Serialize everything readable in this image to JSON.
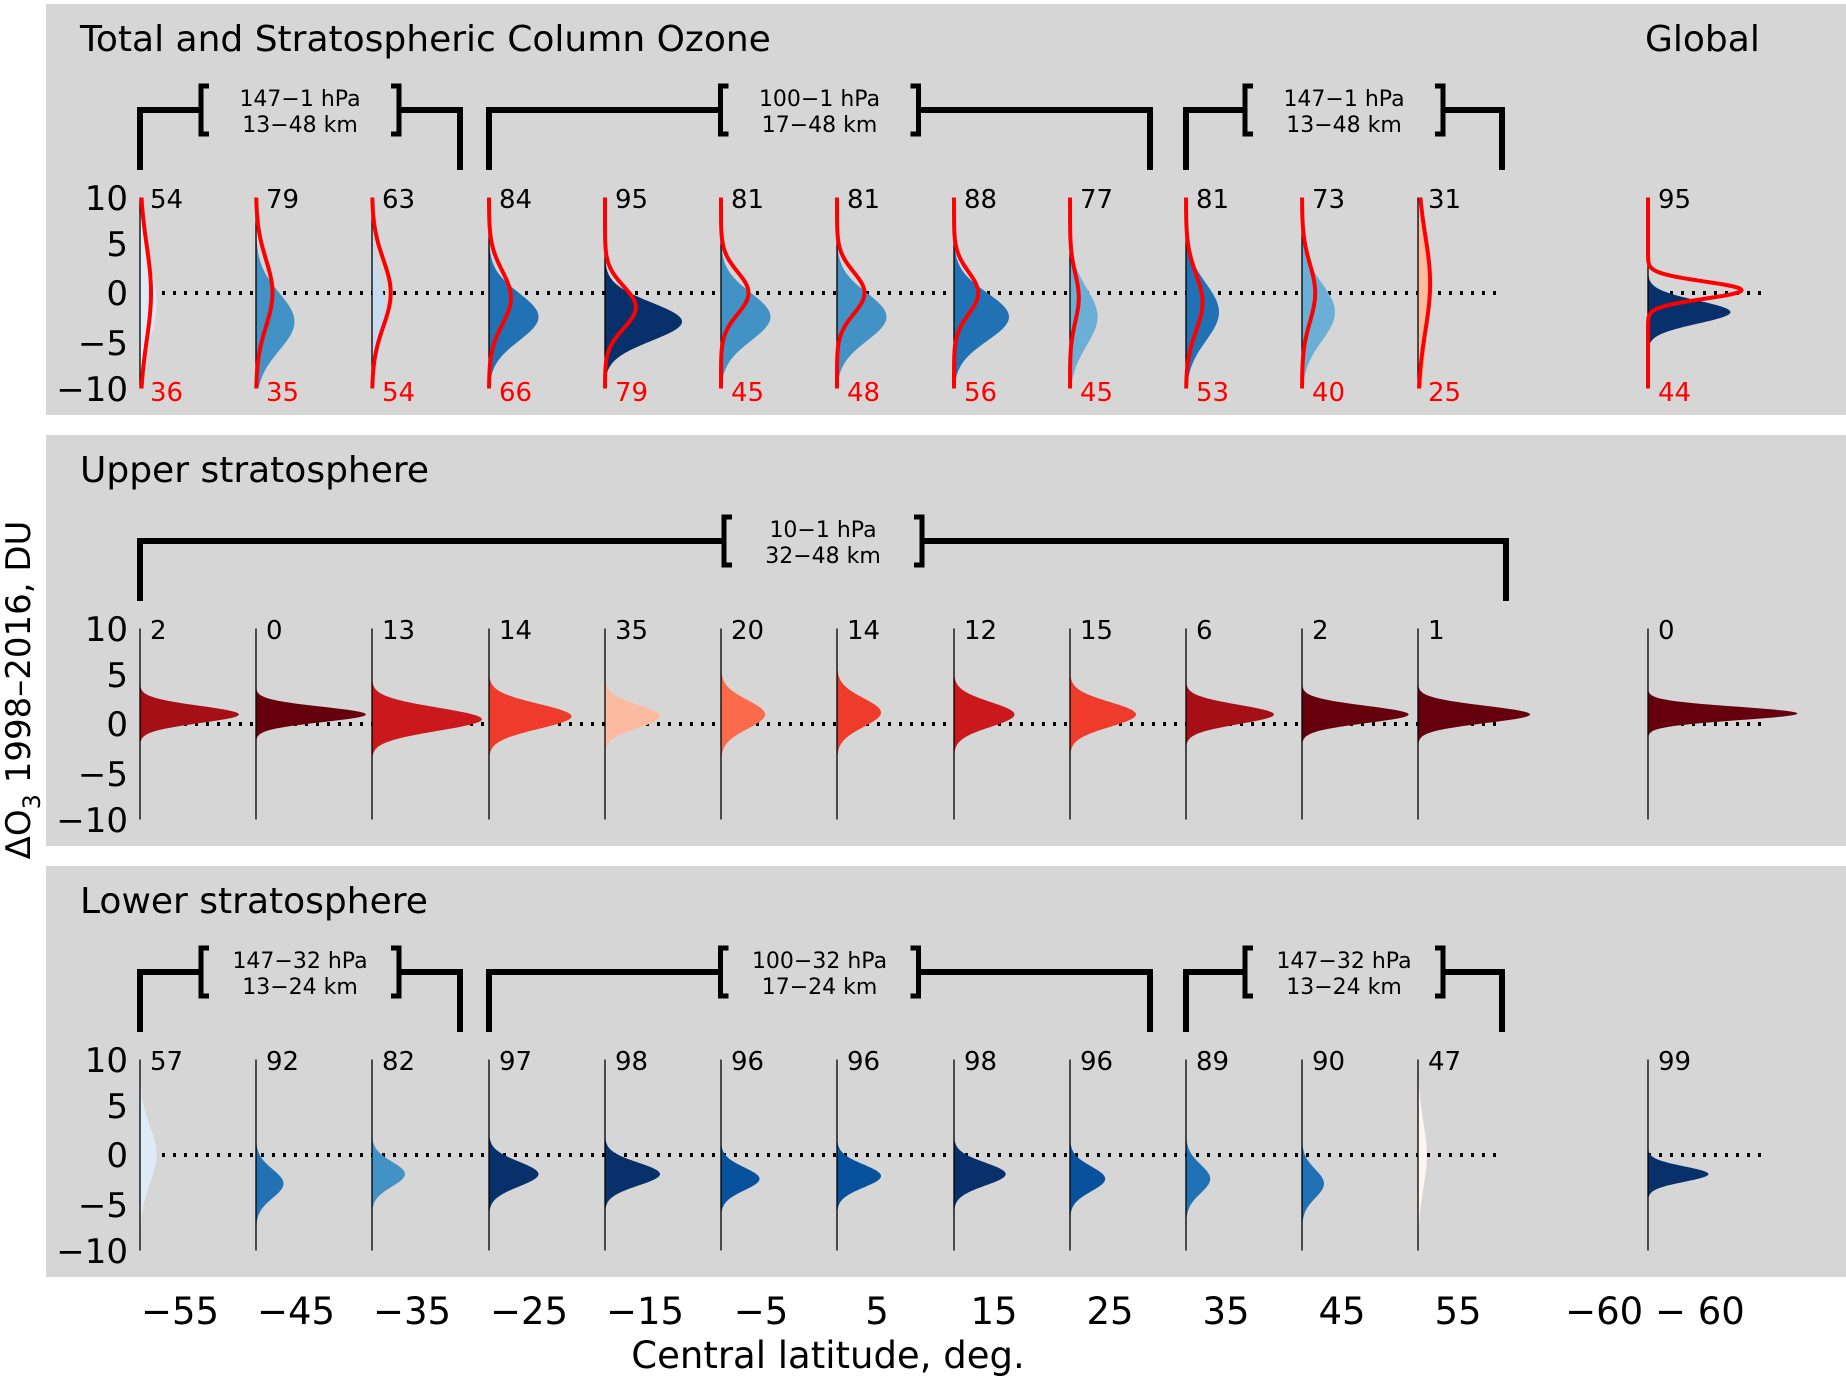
{
  "figure": {
    "ylabel_main": "ΔO",
    "ylabel_sub": "3",
    "ylabel_rest": " 1998–2016, DU",
    "xlabel": "Central latitude, deg.",
    "y_ticks": [
      "10",
      "5",
      "0",
      "−5",
      "−10"
    ],
    "x_tick_labels": [
      "−55",
      "−45",
      "−35",
      "−25",
      "−15",
      "−5",
      "5",
      "15",
      "25",
      "35",
      "45",
      "55"
    ],
    "global_tick_label": "−60 − 60",
    "colors": {
      "panel_bg": "#d6d6d6",
      "red_curve": "#ff0000",
      "red_numbers": "#ff0000",
      "blues": {
        "lightest": "#deebf7",
        "light": "#c6dbef",
        "mid_light": "#9ecae1",
        "mid": "#4292c6",
        "mid_dark": "#2171b5",
        "dark": "#08519c",
        "darkest": "#08306b"
      },
      "reds": {
        "palest": "#fff5f0",
        "pale": "#fcbba1",
        "light": "#fc9272",
        "mid": "#ef3b2c",
        "mid_dark": "#cb181d",
        "dark": "#a50f15",
        "darkest": "#67000d"
      }
    }
  },
  "chart_data": [
    {
      "type": "area",
      "title": "Total and Stratospheric Column Ozone",
      "global_label": "Global",
      "ylim": [
        -10,
        10
      ],
      "brackets": [
        {
          "line1": "147−1 hPa",
          "line2": "13−48 km"
        },
        {
          "line1": "100−1 hPa",
          "line2": "17−48 km"
        },
        {
          "line1": "147−1 hPa",
          "line2": "13−48 km"
        }
      ],
      "categories": [
        "−55",
        "−45",
        "−35",
        "−25",
        "−15",
        "−5",
        "5",
        "15",
        "25",
        "35",
        "45",
        "55",
        "−60 − 60"
      ],
      "top_numbers": [
        "54",
        "79",
        "63",
        "84",
        "95",
        "81",
        "81",
        "88",
        "77",
        "81",
        "73",
        "31",
        "95"
      ],
      "bottom_numbers": [
        "36",
        "35",
        "54",
        "66",
        "79",
        "45",
        "48",
        "56",
        "45",
        "53",
        "40",
        "25",
        "44"
      ],
      "strat_distributions": [
        {
          "mean": -1.0,
          "sd": 4.0,
          "peak": 0.15,
          "color": "#deebf7"
        },
        {
          "mean": -3.0,
          "sd": 3.0,
          "peak": 0.35,
          "color": "#4292c6"
        },
        {
          "mean": -2.0,
          "sd": 3.5,
          "peak": 0.12,
          "color": "#c6dbef"
        },
        {
          "mean": -2.5,
          "sd": 2.5,
          "peak": 0.45,
          "color": "#2171b5"
        },
        {
          "mean": -3.0,
          "sd": 2.0,
          "peak": 0.7,
          "color": "#08306b"
        },
        {
          "mean": -2.5,
          "sd": 2.5,
          "peak": 0.45,
          "color": "#4292c6"
        },
        {
          "mean": -2.5,
          "sd": 2.5,
          "peak": 0.45,
          "color": "#4292c6"
        },
        {
          "mean": -2.5,
          "sd": 2.5,
          "peak": 0.5,
          "color": "#2171b5"
        },
        {
          "mean": -2.5,
          "sd": 3.0,
          "peak": 0.25,
          "color": "#6baed6"
        },
        {
          "mean": -2.0,
          "sd": 3.0,
          "peak": 0.3,
          "color": "#2171b5"
        },
        {
          "mean": -2.0,
          "sd": 3.0,
          "peak": 0.3,
          "color": "#6baed6"
        },
        {
          "mean": 0.0,
          "sd": 7.0,
          "peak": 0.1,
          "color": "#fcbba1"
        },
        {
          "mean": -2.0,
          "sd": 1.2,
          "peak": 0.75,
          "color": "#08306b"
        }
      ],
      "total_distributions": [
        {
          "mean": 0.0,
          "sd": 5.0,
          "peak": 0.1
        },
        {
          "mean": 0.0,
          "sd": 3.5,
          "peak": 0.15
        },
        {
          "mean": 0.0,
          "sd": 3.5,
          "peak": 0.17
        },
        {
          "mean": -0.5,
          "sd": 2.8,
          "peak": 0.2
        },
        {
          "mean": -1.5,
          "sd": 2.2,
          "peak": 0.28
        },
        {
          "mean": 0.0,
          "sd": 2.2,
          "peak": 0.25
        },
        {
          "mean": 0.0,
          "sd": 2.2,
          "peak": 0.25
        },
        {
          "mean": 0.0,
          "sd": 2.2,
          "peak": 0.22
        },
        {
          "mean": -0.5,
          "sd": 2.5,
          "peak": 0.08
        },
        {
          "mean": -1.0,
          "sd": 3.0,
          "peak": 0.15
        },
        {
          "mean": 0.0,
          "sd": 3.0,
          "peak": 0.12
        },
        {
          "mean": 1.0,
          "sd": 5.0,
          "peak": 0.11
        },
        {
          "mean": 0.3,
          "sd": 0.9,
          "peak": 0.85
        }
      ]
    },
    {
      "type": "area",
      "title": "Upper stratosphere",
      "ylim": [
        -10,
        10
      ],
      "brackets": [
        {
          "line1": "10−1 hPa",
          "line2": "32−48 km"
        }
      ],
      "categories": [
        "−55",
        "−45",
        "−35",
        "−25",
        "−15",
        "−5",
        "5",
        "15",
        "25",
        "35",
        "45",
        "55",
        "−60 − 60"
      ],
      "top_numbers": [
        "2",
        "0",
        "13",
        "14",
        "35",
        "20",
        "14",
        "12",
        "15",
        "6",
        "2",
        "1",
        "0"
      ],
      "distributions": [
        {
          "mean": 1.0,
          "sd": 0.9,
          "peak": 0.9,
          "color": "#a50f15"
        },
        {
          "mean": 1.0,
          "sd": 0.8,
          "peak": 1.0,
          "color": "#67000d"
        },
        {
          "mean": 0.5,
          "sd": 1.2,
          "peak": 1.0,
          "color": "#cb181d"
        },
        {
          "mean": 0.8,
          "sd": 1.3,
          "peak": 0.75,
          "color": "#ef3b2c"
        },
        {
          "mean": 0.8,
          "sd": 1.2,
          "peak": 0.5,
          "color": "#fcbba1"
        },
        {
          "mean": 1.0,
          "sd": 1.5,
          "peak": 0.4,
          "color": "#fb6a4a"
        },
        {
          "mean": 1.2,
          "sd": 1.5,
          "peak": 0.4,
          "color": "#ef3b2c"
        },
        {
          "mean": 1.0,
          "sd": 1.3,
          "peak": 0.55,
          "color": "#cb181d"
        },
        {
          "mean": 1.0,
          "sd": 1.3,
          "peak": 0.6,
          "color": "#ef3b2c"
        },
        {
          "mean": 1.0,
          "sd": 1.0,
          "peak": 0.8,
          "color": "#a50f15"
        },
        {
          "mean": 1.0,
          "sd": 0.9,
          "peak": 0.97,
          "color": "#67000d"
        },
        {
          "mean": 1.0,
          "sd": 0.9,
          "peak": 1.02,
          "color": "#67000d"
        },
        {
          "mean": 1.1,
          "sd": 0.7,
          "peak": 1.36,
          "color": "#67000d"
        }
      ]
    },
    {
      "type": "area",
      "title": "Lower stratosphere",
      "ylim": [
        -10,
        10
      ],
      "brackets": [
        {
          "line1": "147−32 hPa",
          "line2": "13−24 km"
        },
        {
          "line1": "100−32 hPa",
          "line2": "17−24 km"
        },
        {
          "line1": "147−32 hPa",
          "line2": "13−24 km"
        }
      ],
      "categories": [
        "−55",
        "−45",
        "−35",
        "−25",
        "−15",
        "−5",
        "5",
        "15",
        "25",
        "35",
        "45",
        "55",
        "−60 − 60"
      ],
      "top_numbers": [
        "57",
        "92",
        "82",
        "97",
        "98",
        "96",
        "96",
        "98",
        "96",
        "89",
        "90",
        "47",
        "99"
      ],
      "distributions": [
        {
          "mean": 0.0,
          "sd": 3.0,
          "peak": 0.15,
          "color": "#deebf7"
        },
        {
          "mean": -3.0,
          "sd": 1.5,
          "peak": 0.25,
          "color": "#2171b5"
        },
        {
          "mean": -2.0,
          "sd": 1.3,
          "peak": 0.3,
          "color": "#4292c6"
        },
        {
          "mean": -2.0,
          "sd": 1.3,
          "peak": 0.45,
          "color": "#08306b"
        },
        {
          "mean": -2.0,
          "sd": 1.2,
          "peak": 0.5,
          "color": "#08306b"
        },
        {
          "mean": -2.5,
          "sd": 1.2,
          "peak": 0.35,
          "color": "#08519c"
        },
        {
          "mean": -2.2,
          "sd": 1.2,
          "peak": 0.4,
          "color": "#08519c"
        },
        {
          "mean": -2.0,
          "sd": 1.2,
          "peak": 0.47,
          "color": "#08306b"
        },
        {
          "mean": -2.5,
          "sd": 1.3,
          "peak": 0.32,
          "color": "#08519c"
        },
        {
          "mean": -2.5,
          "sd": 1.5,
          "peak": 0.22,
          "color": "#2171b5"
        },
        {
          "mean": -3.0,
          "sd": 1.5,
          "peak": 0.2,
          "color": "#2171b5"
        },
        {
          "mean": 0.0,
          "sd": 3.5,
          "peak": 0.08,
          "color": "#fff5f0"
        },
        {
          "mean": -2.0,
          "sd": 0.8,
          "peak": 0.55,
          "color": "#08306b"
        }
      ]
    }
  ]
}
